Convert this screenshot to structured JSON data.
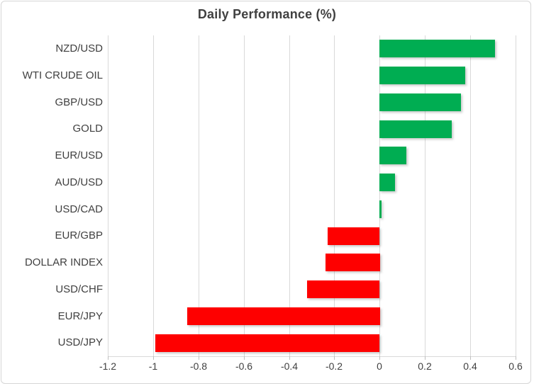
{
  "chart_data": {
    "type": "bar",
    "orientation": "horizontal",
    "title": "Daily Performance (%)",
    "categories": [
      "NZD/USD",
      "WTI CRUDE OIL",
      "GBP/USD",
      "GOLD",
      "EUR/USD",
      "AUD/USD",
      "USD/CAD",
      "EUR/GBP",
      "DOLLAR INDEX",
      "USD/CHF",
      "EUR/JPY",
      "USD/JPY"
    ],
    "values": [
      0.51,
      0.38,
      0.36,
      0.32,
      0.12,
      0.07,
      0.01,
      -0.23,
      -0.24,
      -0.32,
      -0.85,
      -0.99
    ],
    "xlabel": "",
    "ylabel": "",
    "xlim": [
      -1.2,
      0.6
    ],
    "x_ticks": [
      -1.2,
      -1,
      -0.8,
      -0.6,
      -0.4,
      -0.2,
      0,
      0.2,
      0.4,
      0.6
    ],
    "x_tick_labels": [
      "-1.2",
      "-1",
      "-0.8",
      "-0.6",
      "-0.4",
      "-0.2",
      "0",
      "0.2",
      "0.4",
      "0.6"
    ],
    "grid": "vertical-only",
    "legend": "none",
    "colors": {
      "positive": "#00ad52",
      "negative": "#fe0000",
      "gridline": "#d9d9d9",
      "axis_text": "#404040",
      "title_text": "#404040",
      "border": "#d6d6d6",
      "background": "#ffffff"
    }
  }
}
